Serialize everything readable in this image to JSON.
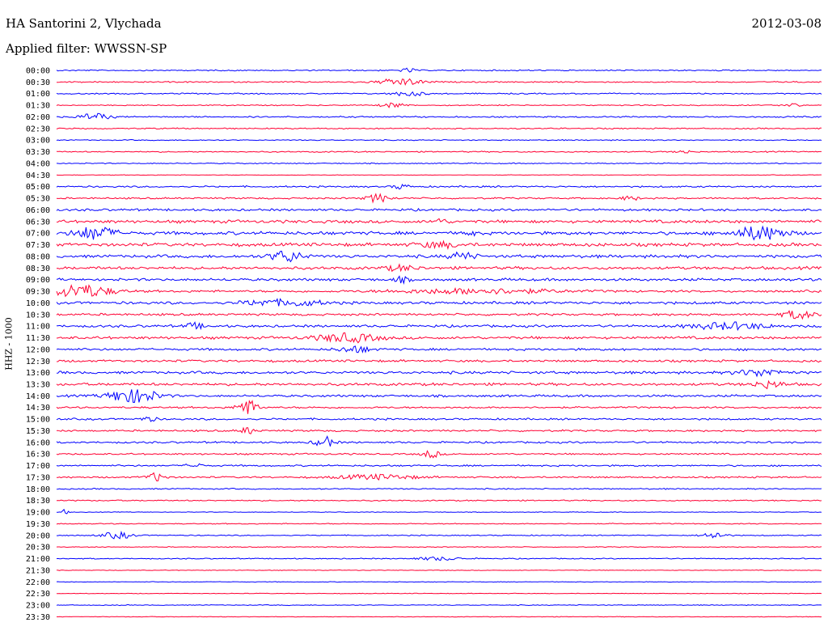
{
  "header": {
    "station": "HA Santorini 2, Vlychada",
    "date": "2012-03-08",
    "filter": "Applied filter: WWSSN-SP"
  },
  "chart_data": {
    "type": "line",
    "title": "HA Santorini 2, Vlychada",
    "channel_label": "HHZ - 1000",
    "colors": [
      "#0000ff",
      "#ff0033"
    ],
    "traces": [
      "00:00",
      "00:30",
      "01:00",
      "01:30",
      "02:00",
      "02:30",
      "03:00",
      "03:30",
      "04:00",
      "04:30",
      "05:00",
      "05:30",
      "06:00",
      "06:30",
      "07:00",
      "07:30",
      "08:00",
      "08:30",
      "09:00",
      "09:30",
      "10:00",
      "10:30",
      "11:00",
      "11:30",
      "12:00",
      "12:30",
      "13:00",
      "13:30",
      "14:00",
      "14:30",
      "15:00",
      "15:30",
      "16:00",
      "16:30",
      "17:00",
      "17:30",
      "18:00",
      "18:30",
      "19:00",
      "19:30",
      "20:00",
      "20:30",
      "21:00",
      "21:30",
      "22:00",
      "22:30",
      "23:00",
      "23:30"
    ],
    "noise_level": [
      0.6,
      0.6,
      0.6,
      0.5,
      0.7,
      0.6,
      0.5,
      0.6,
      0.5,
      0.3,
      0.8,
      0.8,
      1.1,
      1.5,
      1.6,
      1.6,
      1.5,
      1.4,
      1.3,
      1.1,
      1.3,
      1.1,
      1.2,
      1.3,
      1.1,
      1.1,
      1.3,
      1.3,
      1.1,
      0.9,
      0.9,
      0.9,
      0.9,
      0.8,
      0.8,
      0.8,
      0.6,
      0.6,
      0.3,
      0.5,
      0.5,
      0.4,
      0.5,
      0.3,
      0.3,
      0.3,
      0.4,
      0.3
    ],
    "events": [
      [
        [
          0.46,
          2.5,
          0.01
        ]
      ],
      [
        [
          0.45,
          4,
          0.03
        ]
      ],
      [
        [
          0.46,
          3,
          0.02
        ]
      ],
      [
        [
          0.44,
          3,
          0.015
        ],
        [
          0.96,
          2.5,
          0.01
        ]
      ],
      [
        [
          0.05,
          4,
          0.02
        ]
      ],
      [],
      [],
      [
        [
          0.82,
          2,
          0.01
        ]
      ],
      [],
      [],
      [
        [
          0.45,
          3,
          0.01
        ]
      ],
      [
        [
          0.42,
          5,
          0.015
        ],
        [
          0.75,
          3,
          0.01
        ]
      ],
      [],
      [
        [
          0.5,
          3,
          0.01
        ]
      ],
      [
        [
          0.05,
          8,
          0.025
        ],
        [
          0.54,
          6,
          0.005
        ],
        [
          0.92,
          9,
          0.03
        ]
      ],
      [
        [
          0.5,
          3,
          0.03
        ]
      ],
      [
        [
          0.3,
          7,
          0.02
        ],
        [
          0.53,
          5,
          0.015
        ]
      ],
      [
        [
          0.45,
          3,
          0.02
        ]
      ],
      [
        [
          0.45,
          3,
          0.01
        ]
      ],
      [
        [
          0.03,
          8,
          0.04
        ],
        [
          0.55,
          3,
          0.1
        ]
      ],
      [
        [
          0.27,
          3,
          0.03
        ],
        [
          0.32,
          3,
          0.03
        ]
      ],
      [
        [
          0.97,
          5,
          0.02
        ]
      ],
      [
        [
          0.18,
          4,
          0.01
        ],
        [
          0.88,
          4,
          0.05
        ]
      ],
      [
        [
          0.38,
          5,
          0.04
        ]
      ],
      [
        [
          0.39,
          4,
          0.02
        ]
      ],
      [],
      [
        [
          0.92,
          4,
          0.03
        ]
      ],
      [
        [
          0.93,
          4,
          0.02
        ]
      ],
      [
        [
          0.1,
          10,
          0.03
        ]
      ],
      [
        [
          0.25,
          14,
          0.012
        ]
      ],
      [
        [
          0.12,
          3,
          0.01
        ]
      ],
      [
        [
          0.25,
          4,
          0.01
        ]
      ],
      [
        [
          0.35,
          7,
          0.012
        ]
      ],
      [
        [
          0.49,
          5,
          0.01
        ]
      ],
      [
        [
          0.18,
          3,
          0.01
        ]
      ],
      [
        [
          0.13,
          5,
          0.012
        ],
        [
          0.42,
          3,
          0.05
        ]
      ],
      [],
      [],
      [
        [
          0.01,
          3,
          0.005
        ]
      ],
      [],
      [
        [
          0.08,
          4,
          0.02
        ],
        [
          0.86,
          4,
          0.015
        ]
      ],
      [],
      [
        [
          0.5,
          2,
          0.03
        ]
      ],
      [],
      [],
      [],
      [],
      []
    ],
    "xlabel": "",
    "ylabel": ""
  }
}
